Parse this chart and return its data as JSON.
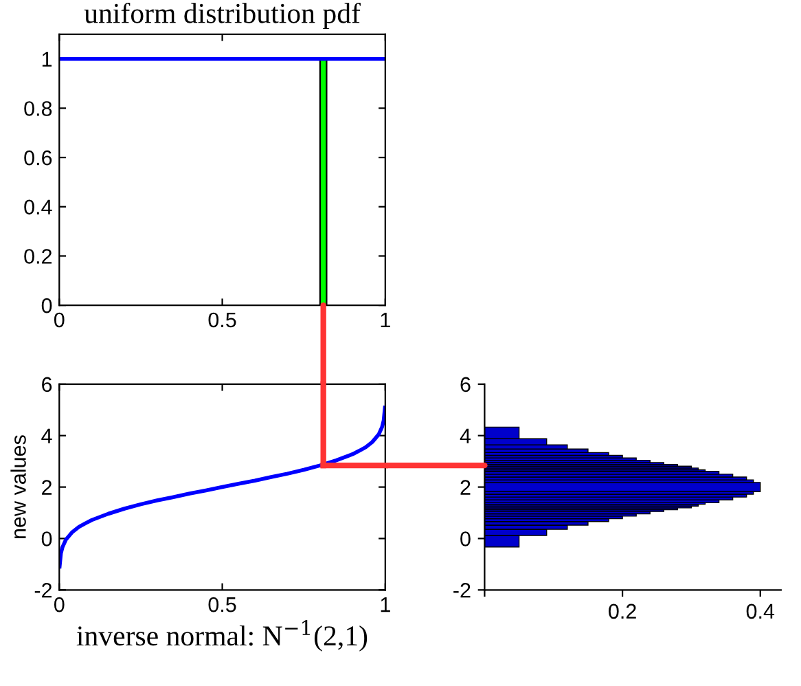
{
  "chart_data": [
    {
      "type": "line",
      "title": "uniform distribution pdf",
      "xlim": [
        0,
        1
      ],
      "ylim": [
        0,
        1.1
      ],
      "xticks": [
        0,
        0.5,
        1
      ],
      "yticks": [
        0,
        0.2,
        0.4,
        0.6,
        0.8,
        1
      ],
      "series": [
        {
          "type": "line",
          "x": [
            0,
            1
          ],
          "values": [
            1,
            1
          ],
          "color": "#0000ff"
        },
        {
          "type": "bar",
          "x": [
            0.81
          ],
          "values": [
            1
          ],
          "color": "#00ff00"
        }
      ]
    },
    {
      "type": "line",
      "xlabel": "inverse normal: N$^{−1}$(2,1)",
      "ylabel": "new values",
      "xlim": [
        0,
        1
      ],
      "ylim": [
        -2,
        6
      ],
      "xticks": [
        0,
        0.5,
        1
      ],
      "yticks": [
        -2,
        0,
        2,
        4,
        6
      ],
      "ref_lines": [
        {
          "axis": "x",
          "value": 0.81,
          "color": "#ff3333"
        },
        {
          "axis": "y",
          "value": 2.84,
          "color": "#ff3333"
        }
      ],
      "series": [
        {
          "type": "line",
          "color": "#0000ff",
          "x": [
            0.001,
            0.005,
            0.01,
            0.02,
            0.04,
            0.06,
            0.08,
            0.1,
            0.15,
            0.2,
            0.25,
            0.3,
            0.35,
            0.4,
            0.45,
            0.5,
            0.55,
            0.6,
            0.65,
            0.7,
            0.75,
            0.8,
            0.85,
            0.9,
            0.92,
            0.94,
            0.96,
            0.98,
            0.99,
            0.995,
            0.999
          ],
          "values": [
            -1.09,
            -0.58,
            -0.33,
            -0.05,
            0.25,
            0.45,
            0.59,
            0.72,
            0.96,
            1.16,
            1.33,
            1.48,
            1.61,
            1.75,
            1.87,
            2,
            2.13,
            2.25,
            2.39,
            2.52,
            2.67,
            2.84,
            3.04,
            3.28,
            3.41,
            3.55,
            3.75,
            4.05,
            4.33,
            4.58,
            5.09
          ]
        }
      ]
    },
    {
      "type": "histogram",
      "orientation": "horizontal",
      "color": "#0000cc",
      "xlim": [
        0,
        0.43
      ],
      "xticks": [
        {
          "value": 0,
          "label": null
        },
        0.2,
        0.4
      ],
      "ylim": [
        -2,
        6
      ],
      "yticks": [
        -2,
        0,
        2,
        4,
        6
      ],
      "bins": [
        -0.33,
        0.12,
        0.36,
        0.52,
        0.66,
        0.77,
        0.87,
        0.96,
        1.05,
        1.12,
        1.19,
        1.26,
        1.33,
        1.39,
        1.5,
        1.61,
        1.72,
        1.82,
        2.18,
        2.28,
        2.39,
        2.5,
        2.61,
        2.67,
        2.74,
        2.81,
        2.88,
        2.95,
        3.04,
        3.13,
        3.23,
        3.34,
        3.48,
        3.64,
        3.88,
        4.33
      ],
      "values": [
        0.05,
        0.09,
        0.12,
        0.15,
        0.18,
        0.2,
        0.22,
        0.24,
        0.26,
        0.28,
        0.3,
        0.31,
        0.32,
        0.34,
        0.36,
        0.38,
        0.39,
        0.4,
        0.39,
        0.38,
        0.36,
        0.34,
        0.32,
        0.31,
        0.3,
        0.28,
        0.26,
        0.24,
        0.22,
        0.2,
        0.18,
        0.15,
        0.12,
        0.09,
        0.05
      ]
    }
  ]
}
